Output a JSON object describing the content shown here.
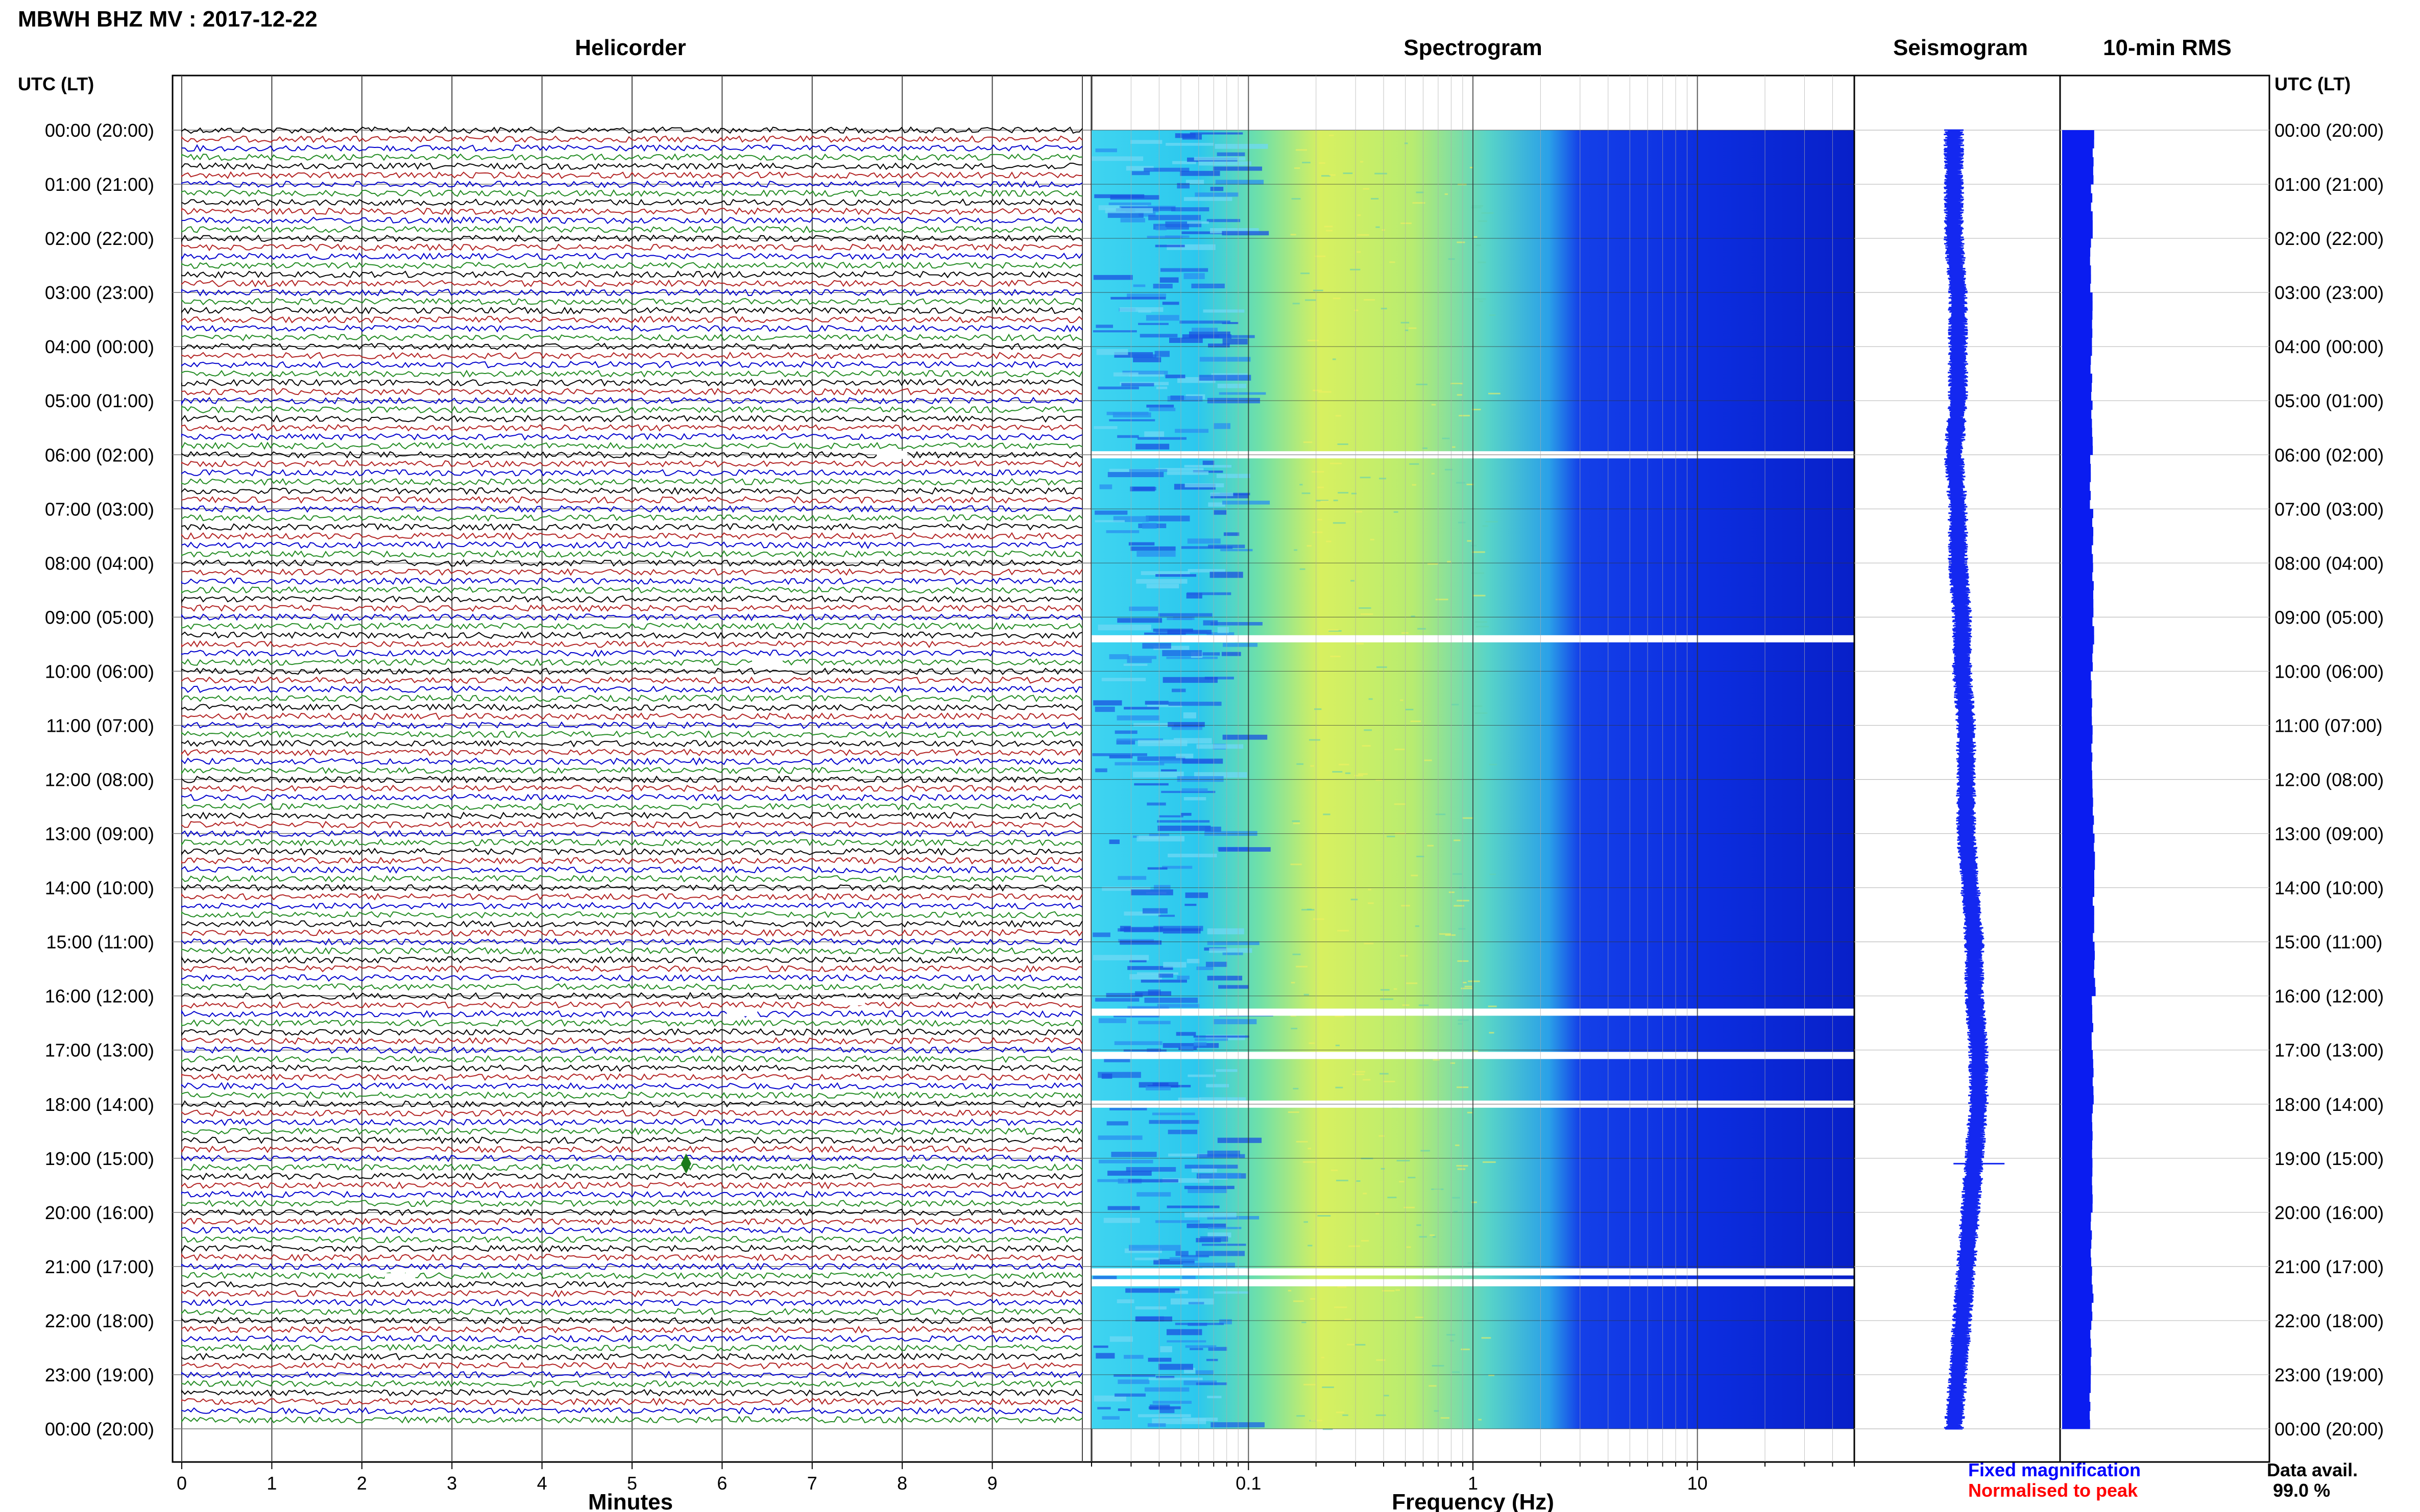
{
  "station_title": "MBWH BHZ MV : 2017-12-22",
  "panels": {
    "helicorder": "Helicorder",
    "spectrogram": "Spectrogram",
    "seismogram": "Seismogram",
    "rms": "10-min RMS"
  },
  "time_axis_label": "UTC (LT)",
  "time_labels": [
    "00:00 (20:00)",
    "01:00 (21:00)",
    "02:00 (22:00)",
    "03:00 (23:00)",
    "04:00 (00:00)",
    "05:00 (01:00)",
    "06:00 (02:00)",
    "07:00 (03:00)",
    "08:00 (04:00)",
    "09:00 (05:00)",
    "10:00 (06:00)",
    "11:00 (07:00)",
    "12:00 (08:00)",
    "13:00 (09:00)",
    "14:00 (10:00)",
    "15:00 (11:00)",
    "16:00 (12:00)",
    "17:00 (13:00)",
    "18:00 (14:00)",
    "19:00 (15:00)",
    "20:00 (16:00)",
    "21:00 (17:00)",
    "22:00 (18:00)",
    "23:00 (19:00)",
    "00:00 (20:00)"
  ],
  "minutes_axis": {
    "label": "Minutes",
    "ticks": [
      "0",
      "1",
      "2",
      "3",
      "4",
      "5",
      "6",
      "7",
      "8",
      "9"
    ]
  },
  "frequency_axis": {
    "label": "Frequency (Hz)",
    "ticks": [
      "0.1",
      "1",
      "10"
    ]
  },
  "legend": {
    "fixed": "Fixed magnification",
    "normalised": "Normalised to peak",
    "fixed_color": "#0000ff",
    "normalised_color": "#ff0000"
  },
  "data_availability": {
    "label": "Data avail.",
    "value": "99.0 %"
  },
  "colors": {
    "trace_cycle": [
      "#000000",
      "#b22222",
      "#0000cd",
      "#228b22"
    ],
    "rms_fill": "#0a1cf0",
    "seismogram": "#1428f0"
  },
  "chart_data": {
    "type": "heatmap",
    "title": "MBWH BHZ MV : 2017-12-22",
    "station": "MBWH",
    "channel": "BHZ",
    "network": "MV",
    "date": "2017-12-22",
    "helicorder": {
      "lines_per_hour": 6,
      "minutes_per_line": 10,
      "xlim": [
        0,
        10
      ],
      "gaps_hours": [
        6.0,
        9.8,
        16.1,
        16.3,
        21.2
      ],
      "event": {
        "hour": 19.1,
        "minute": 5.6
      }
    },
    "spectrogram": {
      "xscale": "log",
      "xlim": [
        0.02,
        50
      ],
      "ylim": [
        0,
        24
      ],
      "gap_hours": [
        6.0,
        9.4,
        16.3,
        17.1,
        18.0,
        21.1,
        21.3
      ]
    },
    "seismogram_offset": [
      0.0,
      0.0,
      0.0,
      0.1,
      0.1,
      0.1,
      0.0,
      0.1,
      0.1,
      0.2,
      0.2,
      0.3,
      0.3,
      0.3,
      0.4,
      0.5,
      0.5,
      0.6,
      0.6,
      0.5,
      0.4,
      0.3,
      0.2,
      0.1,
      0.0
    ],
    "rms_levels": [
      0.8,
      0.76,
      0.74,
      0.78,
      0.75,
      0.77,
      0.72,
      0.78,
      0.79,
      0.8,
      0.76,
      0.77,
      0.8,
      0.82,
      0.81,
      0.84,
      0.78,
      0.8,
      0.78,
      0.76,
      0.74,
      0.78,
      0.74,
      0.72
    ]
  }
}
